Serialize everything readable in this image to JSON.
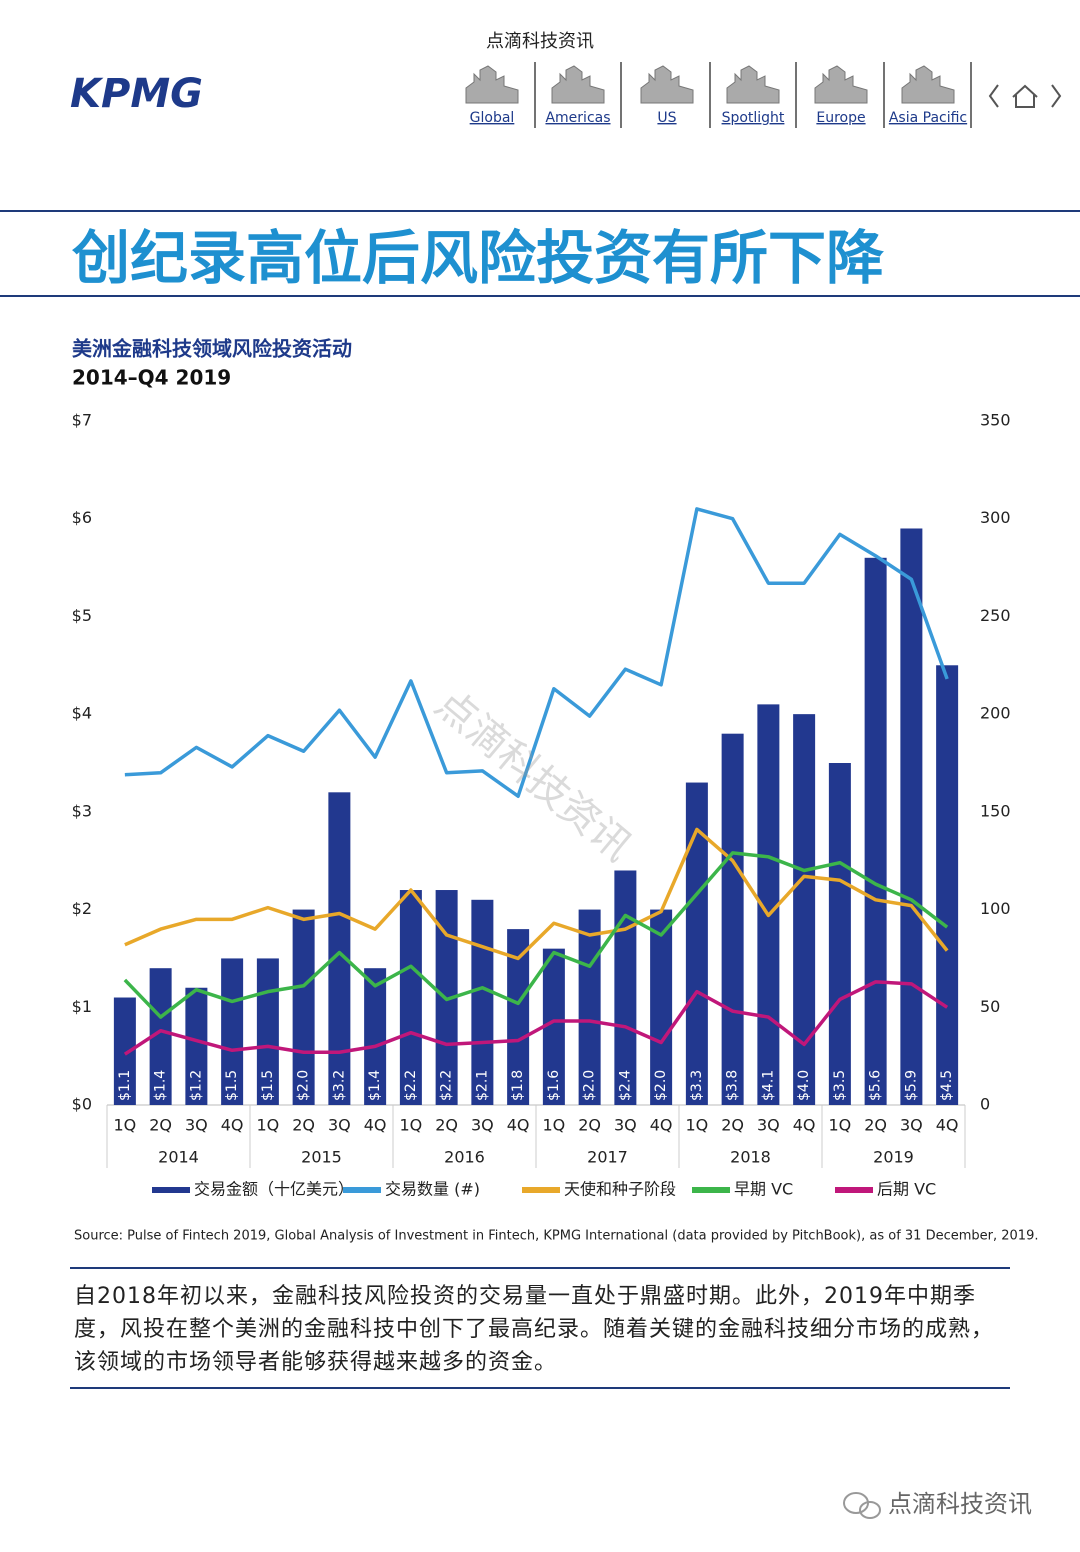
{
  "header": {
    "site": "点滴科技资讯",
    "logo": "KPMG",
    "nav": [
      "Global",
      "Americas",
      "US",
      "Spotlight",
      "Europe",
      "Asia Pacific"
    ]
  },
  "heading": "创纪录高位后风险投资有所下降",
  "chart_data": {
    "type": "bar",
    "title": "美洲金融科技领域风险投资活动",
    "subtitle": "2014–Q4 2019",
    "categories": [
      "1Q",
      "2Q",
      "3Q",
      "4Q",
      "1Q",
      "2Q",
      "3Q",
      "4Q",
      "1Q",
      "2Q",
      "3Q",
      "4Q",
      "1Q",
      "2Q",
      "3Q",
      "4Q",
      "1Q",
      "2Q",
      "3Q",
      "4Q",
      "1Q",
      "2Q",
      "3Q",
      "4Q"
    ],
    "category_groups": [
      "2014",
      "2015",
      "2016",
      "2017",
      "2018",
      "2019"
    ],
    "ylim": [
      0,
      7
    ],
    "yticks": [
      {
        "value": 0,
        "label": "$0"
      },
      {
        "value": 1,
        "label": "$1"
      },
      {
        "value": 2,
        "label": "$2"
      },
      {
        "value": 3,
        "label": "$3"
      },
      {
        "value": 4,
        "label": "$4"
      },
      {
        "value": 5,
        "label": "$5"
      },
      {
        "value": 6,
        "label": "$6"
      },
      {
        "value": 7,
        "label": "$7"
      }
    ],
    "y2lim": [
      0,
      350
    ],
    "y2ticks": [
      0,
      50,
      100,
      150,
      200,
      250,
      300,
      350
    ],
    "legend": "bottom",
    "series": [
      {
        "name": "交易金额（十亿美元）",
        "type": "bar",
        "color": "#22388f",
        "values": [
          1.1,
          1.4,
          1.2,
          1.5,
          1.5,
          2.0,
          3.2,
          1.4,
          2.2,
          2.2,
          2.1,
          1.8,
          1.6,
          2.0,
          2.4,
          2.0,
          3.3,
          3.8,
          4.1,
          4.0,
          3.5,
          5.6,
          5.9,
          4.5
        ],
        "value_labels": [
          "$1.1",
          "$1.4",
          "$1.2",
          "$1.5",
          "$1.5",
          "$2.0",
          "$3.2",
          "$1.4",
          "$2.2",
          "$2.2",
          "$2.1",
          "$1.8",
          "$1.6",
          "$2.0",
          "$2.4",
          "$2.0",
          "$3.3",
          "$3.8",
          "$4.1",
          "$4.0",
          "$3.5",
          "$5.6",
          "$5.9",
          "$4.5"
        ]
      },
      {
        "name": "交易数量 (#)",
        "type": "line",
        "axis": "y2",
        "color": "#3a9ad9",
        "values": [
          169,
          170,
          183,
          173,
          189,
          181,
          202,
          178,
          217,
          170,
          171,
          158,
          213,
          199,
          223,
          215,
          305,
          300,
          267,
          267,
          292,
          281,
          269,
          218
        ]
      },
      {
        "name": "天使和种子阶段",
        "type": "line",
        "axis": "y2",
        "color": "#e8a82a",
        "values": [
          82,
          90,
          95,
          95,
          101,
          95,
          98,
          90,
          110,
          87,
          81,
          75,
          93,
          87,
          90,
          99,
          141,
          125,
          97,
          117,
          115,
          105,
          102,
          79
        ]
      },
      {
        "name": "早期 VC",
        "type": "line",
        "axis": "y2",
        "color": "#3cb54a",
        "values": [
          64,
          45,
          59,
          53,
          58,
          61,
          78,
          61,
          71,
          54,
          60,
          52,
          78,
          71,
          97,
          87,
          108,
          129,
          127,
          120,
          124,
          113,
          105,
          91
        ]
      },
      {
        "name": "后期 VC",
        "type": "line",
        "axis": "y2",
        "color": "#c0177a",
        "values": [
          26,
          38,
          33,
          28,
          30,
          27,
          27,
          30,
          37,
          31,
          32,
          33,
          43,
          43,
          40,
          32,
          58,
          48,
          45,
          31,
          54,
          63,
          62,
          50
        ]
      }
    ]
  },
  "source": "Source: Pulse of Fintech 2019, Global Analysis of Investment in Fintech, KPMG International (data provided by PitchBook), as of 31 December, 2019.",
  "body": "自2018年初以来，金融科技风险投资的交易量一直处于鼎盛时期。此外，2019年中期季度，风投在整个美洲的金融科技中创下了最高纪录。随着关键的金融科技细分市场的成熟，该领域的市场领导者能够获得越来越多的资金。",
  "watermark": "点滴科技资讯",
  "footer": "点滴科技资讯"
}
